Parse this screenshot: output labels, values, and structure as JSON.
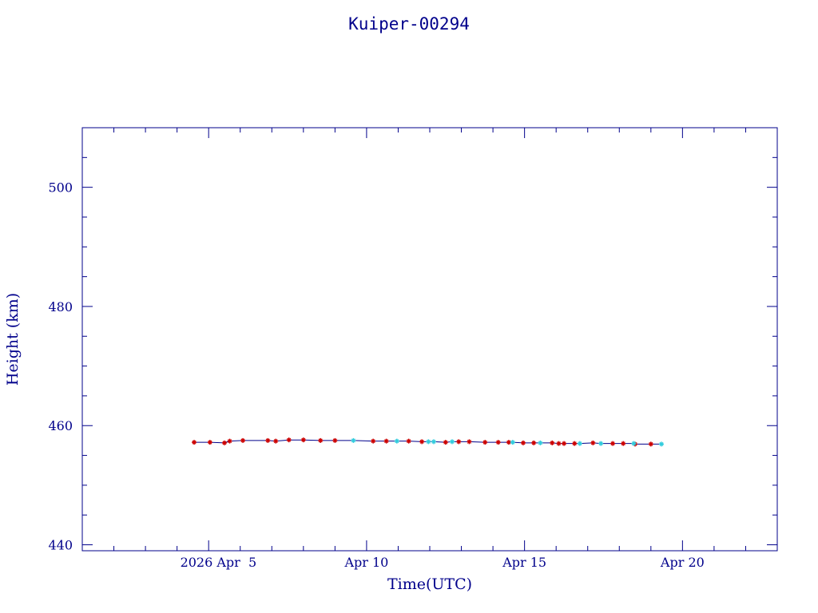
{
  "chart_data": {
    "type": "line",
    "title": "Kuiper-00294",
    "xlabel": "Time(UTC)",
    "ylabel": "Height (km)",
    "x_ticks": [
      {
        "day": 5,
        "label": "2026 Apr  5"
      },
      {
        "day": 10,
        "label": "Apr 10"
      },
      {
        "day": 15,
        "label": "Apr 15"
      },
      {
        "day": 20,
        "label": "Apr 20"
      }
    ],
    "y_ticks": [
      440,
      460,
      480,
      500
    ],
    "xlim": [
      "2026-04-01",
      "2026-04-23"
    ],
    "ylim": [
      439,
      510
    ],
    "grid": false,
    "colors": {
      "axis": "#00008b",
      "line": "#00008b",
      "marker_red": "#cc0000",
      "marker_cyan": "#33ccdd"
    },
    "series": [
      {
        "marker": "red",
        "points": [
          [
            "2026-04-04T13:00",
            457.2
          ],
          [
            "2026-04-05T01:00",
            457.2
          ],
          [
            "2026-04-05T12:00",
            457.1
          ],
          [
            "2026-04-05T16:00",
            457.4
          ],
          [
            "2026-04-06T02:00",
            457.5
          ],
          [
            "2026-04-06T21:00",
            457.5
          ],
          [
            "2026-04-07T03:00",
            457.4
          ],
          [
            "2026-04-07T13:00",
            457.6
          ],
          [
            "2026-04-08T00:00",
            457.6
          ],
          [
            "2026-04-08T13:00",
            457.5
          ],
          [
            "2026-04-09T00:00",
            457.5
          ],
          [
            "2026-04-10T05:00",
            457.4
          ],
          [
            "2026-04-10T15:00",
            457.4
          ],
          [
            "2026-04-11T08:00",
            457.4
          ],
          [
            "2026-04-11T18:00",
            457.3
          ],
          [
            "2026-04-12T12:00",
            457.2
          ],
          [
            "2026-04-12T22:00",
            457.3
          ],
          [
            "2026-04-13T06:00",
            457.3
          ],
          [
            "2026-04-13T18:00",
            457.2
          ],
          [
            "2026-04-14T04:00",
            457.2
          ],
          [
            "2026-04-14T12:00",
            457.2
          ],
          [
            "2026-04-14T23:00",
            457.1
          ],
          [
            "2026-04-15T07:00",
            457.1
          ],
          [
            "2026-04-15T21:00",
            457.1
          ],
          [
            "2026-04-16T02:00",
            457.0
          ],
          [
            "2026-04-16T06:00",
            457.0
          ],
          [
            "2026-04-16T14:00",
            457.0
          ],
          [
            "2026-04-17T04:00",
            457.1
          ],
          [
            "2026-04-17T19:00",
            457.0
          ],
          [
            "2026-04-18T03:00",
            457.0
          ],
          [
            "2026-04-18T12:00",
            456.9
          ],
          [
            "2026-04-19T00:00",
            456.9
          ]
        ]
      },
      {
        "marker": "cyan",
        "points": [
          [
            "2026-04-09T14:00",
            457.5
          ],
          [
            "2026-04-10T23:00",
            457.4
          ],
          [
            "2026-04-11T23:00",
            457.3
          ],
          [
            "2026-04-12T03:00",
            457.3
          ],
          [
            "2026-04-12T17:00",
            457.3
          ],
          [
            "2026-04-14T15:00",
            457.2
          ],
          [
            "2026-04-15T12:00",
            457.1
          ],
          [
            "2026-04-16T18:00",
            457.0
          ],
          [
            "2026-04-17T10:00",
            457.0
          ],
          [
            "2026-04-18T11:00",
            457.0
          ],
          [
            "2026-04-19T08:00",
            456.9
          ]
        ]
      }
    ]
  }
}
